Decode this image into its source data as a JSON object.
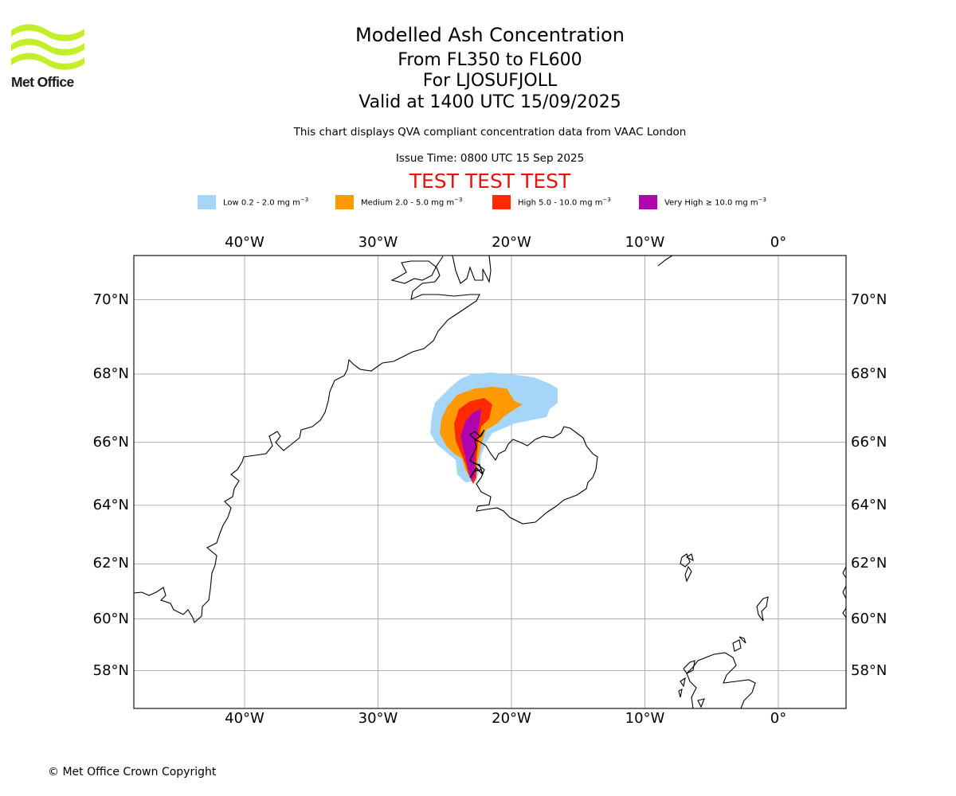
{
  "branding": {
    "logo_text": "Met Office"
  },
  "header": {
    "title": "Modelled Ash Concentration",
    "flight_levels": "From FL350 to FL600",
    "volcano": "For LJOSUFJOLL",
    "valid_time": "Valid at 1400 UTC 15/09/2025",
    "subtitle": "This chart displays QVA compliant concentration data from VAAC London",
    "issue_time": "Issue Time: 0800 UTC 15 Sep 2025",
    "test_banner": "TEST TEST TEST"
  },
  "legend": [
    {
      "label": "Low 0.2 - 2.0 mg m",
      "color": "#a6d5fa"
    },
    {
      "label": "Medium 2.0 - 5.0 mg m",
      "color": "#ff9a05"
    },
    {
      "label": "High 5.0 - 10.0 mg m",
      "color": "#ff2a00"
    },
    {
      "label": "Very High  ≥  10.0 mg m",
      "color": "#ae05ae"
    }
  ],
  "legend_unit_exponent": "−3",
  "map": {
    "longitude_labels": [
      "40°W",
      "30°W",
      "20°W",
      "10°W",
      "0°"
    ],
    "latitude_labels": [
      "70°N",
      "68°N",
      "66°N",
      "64°N",
      "62°N",
      "60°N",
      "58°N"
    ],
    "longitude_values": [
      -40,
      -30,
      -20,
      -10,
      0
    ],
    "latitude_values": [
      70,
      68,
      66,
      64,
      62,
      60,
      58
    ],
    "gridlines": true
  },
  "footer": {
    "copyright": "© Met Office Crown Copyright"
  }
}
